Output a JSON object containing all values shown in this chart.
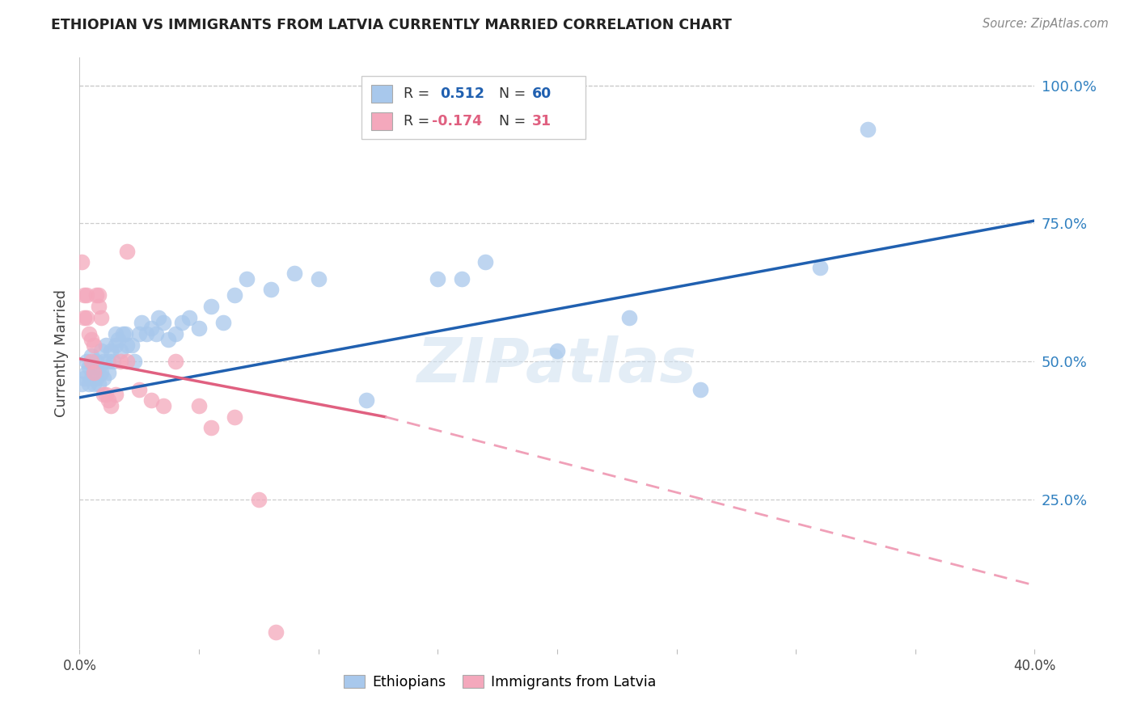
{
  "title": "ETHIOPIAN VS IMMIGRANTS FROM LATVIA CURRENTLY MARRIED CORRELATION CHART",
  "source": "Source: ZipAtlas.com",
  "ylabel": "Currently Married",
  "xlim": [
    0.0,
    0.4
  ],
  "ylim": [
    -0.02,
    1.05
  ],
  "yticks": [
    0.25,
    0.5,
    0.75,
    1.0
  ],
  "ytick_labels": [
    "25.0%",
    "50.0%",
    "75.0%",
    "100.0%"
  ],
  "xticks": [
    0.0,
    0.05,
    0.1,
    0.15,
    0.2,
    0.25,
    0.3,
    0.35,
    0.4
  ],
  "xtick_labels": [
    "0.0%",
    "",
    "",
    "",
    "",
    "",
    "",
    "",
    "40.0%"
  ],
  "blue_R": 0.512,
  "blue_N": 60,
  "pink_R": -0.174,
  "pink_N": 31,
  "blue_color": "#A8C8EC",
  "pink_color": "#F4A8BC",
  "blue_line_color": "#2060B0",
  "pink_line_color": "#E06080",
  "pink_dash_color": "#F0A0B8",
  "watermark": "ZIPatlas",
  "legend_label_blue": "Ethiopians",
  "legend_label_pink": "Immigrants from Latvia",
  "blue_x": [
    0.001,
    0.002,
    0.003,
    0.003,
    0.004,
    0.004,
    0.005,
    0.005,
    0.006,
    0.006,
    0.007,
    0.007,
    0.008,
    0.008,
    0.009,
    0.009,
    0.01,
    0.01,
    0.011,
    0.012,
    0.012,
    0.013,
    0.014,
    0.015,
    0.015,
    0.016,
    0.017,
    0.018,
    0.019,
    0.02,
    0.022,
    0.023,
    0.025,
    0.026,
    0.028,
    0.03,
    0.032,
    0.033,
    0.035,
    0.037,
    0.04,
    0.043,
    0.046,
    0.05,
    0.055,
    0.06,
    0.065,
    0.07,
    0.08,
    0.09,
    0.1,
    0.12,
    0.15,
    0.16,
    0.17,
    0.2,
    0.23,
    0.26,
    0.31,
    0.33
  ],
  "blue_y": [
    0.46,
    0.47,
    0.48,
    0.5,
    0.46,
    0.49,
    0.47,
    0.51,
    0.46,
    0.49,
    0.47,
    0.5,
    0.46,
    0.49,
    0.48,
    0.52,
    0.47,
    0.5,
    0.53,
    0.5,
    0.48,
    0.52,
    0.5,
    0.53,
    0.55,
    0.54,
    0.52,
    0.55,
    0.55,
    0.53,
    0.53,
    0.5,
    0.55,
    0.57,
    0.55,
    0.56,
    0.55,
    0.58,
    0.57,
    0.54,
    0.55,
    0.57,
    0.58,
    0.56,
    0.6,
    0.57,
    0.62,
    0.65,
    0.63,
    0.66,
    0.65,
    0.43,
    0.65,
    0.65,
    0.68,
    0.52,
    0.58,
    0.45,
    0.67,
    0.92
  ],
  "pink_x": [
    0.001,
    0.002,
    0.002,
    0.003,
    0.003,
    0.004,
    0.005,
    0.005,
    0.006,
    0.006,
    0.007,
    0.008,
    0.008,
    0.009,
    0.01,
    0.011,
    0.012,
    0.013,
    0.015,
    0.017,
    0.02,
    0.02,
    0.025,
    0.03,
    0.035,
    0.04,
    0.05,
    0.055,
    0.065,
    0.075,
    0.082
  ],
  "pink_y": [
    0.68,
    0.58,
    0.62,
    0.58,
    0.62,
    0.55,
    0.5,
    0.54,
    0.48,
    0.53,
    0.62,
    0.62,
    0.6,
    0.58,
    0.44,
    0.44,
    0.43,
    0.42,
    0.44,
    0.5,
    0.5,
    0.7,
    0.45,
    0.43,
    0.42,
    0.5,
    0.42,
    0.38,
    0.4,
    0.25,
    0.01
  ],
  "background_color": "#FFFFFF",
  "grid_color": "#CCCCCC",
  "blue_line_x0": 0.0,
  "blue_line_y0": 0.435,
  "blue_line_x1": 0.4,
  "blue_line_y1": 0.755,
  "pink_line_x0": 0.0,
  "pink_line_y0": 0.505,
  "pink_line_xsolid_end": 0.128,
  "pink_line_ysolid_end": 0.4,
  "pink_line_x1": 0.4,
  "pink_line_y1": 0.095
}
